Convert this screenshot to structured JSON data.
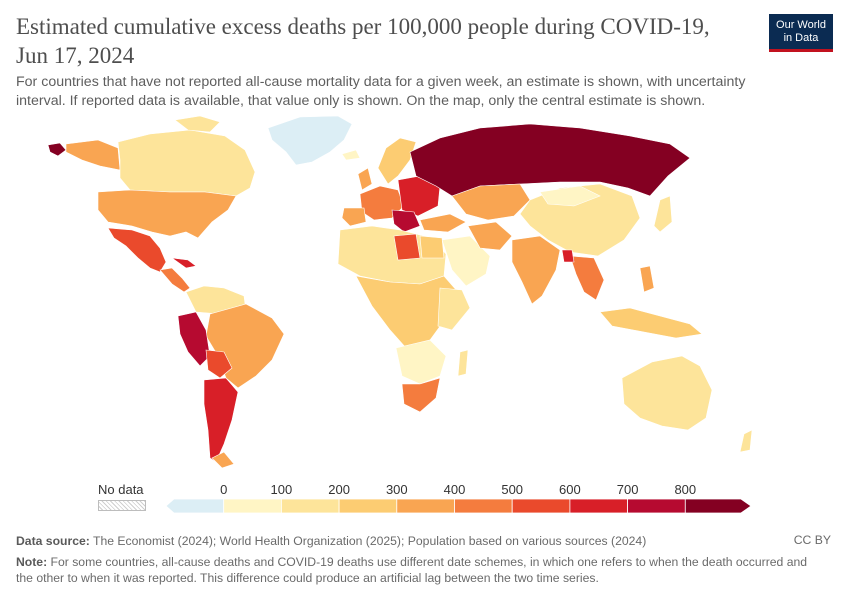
{
  "title": "Estimated cumulative excess deaths per 100,000 people during COVID-19, Jun 17, 2024",
  "subtitle": "For countries that have not reported all-cause mortality data for a given week, an estimate is shown, with uncertainty interval. If reported data is available, that value only is shown. On the map, only the central estimate is shown.",
  "logo": {
    "line1": "Our World",
    "line2": "in Data"
  },
  "legend": {
    "no_data_label": "No data",
    "ticks": [
      "0",
      "100",
      "200",
      "300",
      "400",
      "500",
      "600",
      "700",
      "800"
    ],
    "colors": [
      "#dceef5",
      "#fff5c5",
      "#fde49a",
      "#fccc72",
      "#f9a552",
      "#f47c3e",
      "#ea4a2c",
      "#d81f28",
      "#b60a30",
      "#840022"
    ]
  },
  "footer": {
    "source_label": "Data source:",
    "source_text": "The Economist (2024); World Health Organization (2025); Population based on various sources (2024)",
    "license": "CC BY",
    "note_label": "Note:",
    "note_text": "For some countries, all-cause deaths and COVID-19 deaths use different date schemes, in which one refers to when the death occurred and the other to when it was reported. This difference could produce an artificial lag between the two time series."
  }
}
